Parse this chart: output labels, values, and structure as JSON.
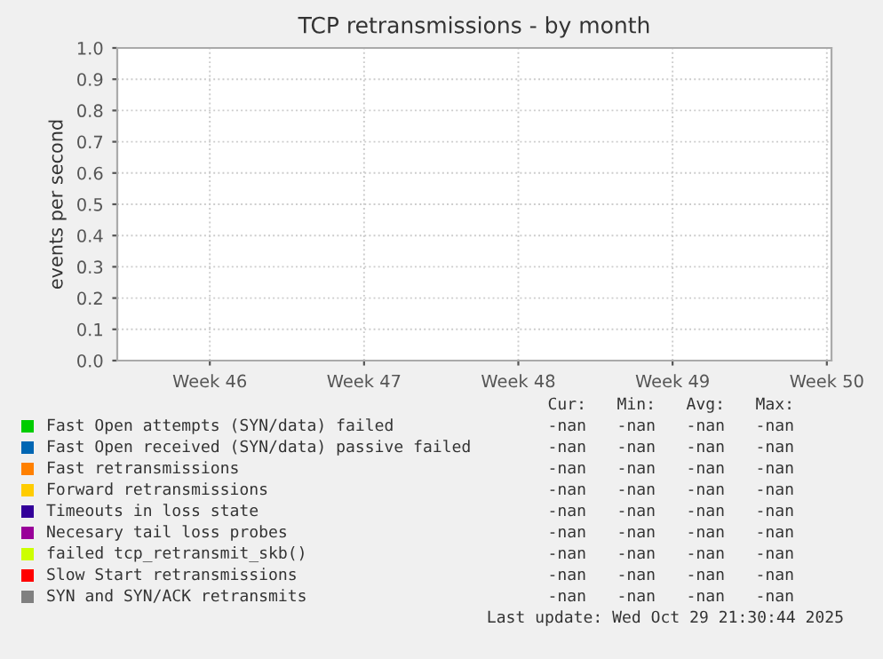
{
  "chart_data": {
    "type": "line",
    "title": "TCP retransmissions - by month",
    "ylabel": "events per second",
    "categories": [
      "Week 46",
      "Week 47",
      "Week 48",
      "Week 49",
      "Week 50"
    ],
    "ylim": [
      0,
      1
    ],
    "yticks": [
      {
        "value": 0,
        "label": "0.0"
      },
      {
        "value": 0.1,
        "label": "0.1"
      },
      {
        "value": 0.2,
        "label": "0.2"
      },
      {
        "value": 0.3,
        "label": "0.3"
      },
      {
        "value": 0.4,
        "label": "0.4"
      },
      {
        "value": 0.5,
        "label": "0.5"
      },
      {
        "value": 0.6,
        "label": "0.6"
      },
      {
        "value": 0.7,
        "label": "0.7"
      },
      {
        "value": 0.8,
        "label": "0.8"
      },
      {
        "value": 0.9,
        "label": "0.9"
      },
      {
        "value": 1,
        "label": "1.0"
      }
    ],
    "grid": true,
    "legend": "bottom",
    "series": [
      {
        "name": "Fast Open attempts (SYN/data) failed",
        "color": "#00cc00",
        "values": [
          null,
          null,
          null,
          null,
          null
        ]
      },
      {
        "name": "Fast Open received (SYN/data) passive failed",
        "color": "#0066b3",
        "values": [
          null,
          null,
          null,
          null,
          null
        ]
      },
      {
        "name": "Fast retransmissions",
        "color": "#ff8000",
        "values": [
          null,
          null,
          null,
          null,
          null
        ]
      },
      {
        "name": "Forward retransmissions",
        "color": "#ffcc00",
        "values": [
          null,
          null,
          null,
          null,
          null
        ]
      },
      {
        "name": "Timeouts in loss state",
        "color": "#330099",
        "values": [
          null,
          null,
          null,
          null,
          null
        ]
      },
      {
        "name": "Necesary tail loss probes",
        "color": "#990099",
        "values": [
          null,
          null,
          null,
          null,
          null
        ]
      },
      {
        "name": "failed tcp_retransmit_skb()",
        "color": "#ccff00",
        "values": [
          null,
          null,
          null,
          null,
          null
        ]
      },
      {
        "name": "Slow Start retransmissions",
        "color": "#ff0000",
        "values": [
          null,
          null,
          null,
          null,
          null
        ]
      },
      {
        "name": "SYN and SYN/ACK retransmits",
        "color": "#808080",
        "values": [
          null,
          null,
          null,
          null,
          null
        ]
      }
    ],
    "annotations": [
      "Cur:",
      "Min:",
      "Avg:",
      "Max:",
      "-nan",
      "-nan",
      "-nan",
      "-nan",
      "-nan",
      "-nan",
      "-nan",
      "-nan",
      "-nan",
      "-nan",
      "-nan",
      "-nan",
      "-nan",
      "-nan",
      "-nan",
      "-nan",
      "-nan",
      "-nan",
      "-nan",
      "-nan",
      "-nan",
      "-nan",
      "-nan",
      "-nan",
      "-nan",
      "-nan",
      "-nan",
      "-nan",
      "-nan",
      "-nan",
      "-nan",
      "-nan",
      "-nan",
      "-nan",
      "-nan",
      "-nan",
      "Last update: Wed Oct 29 21:30:44 2025"
    ]
  }
}
